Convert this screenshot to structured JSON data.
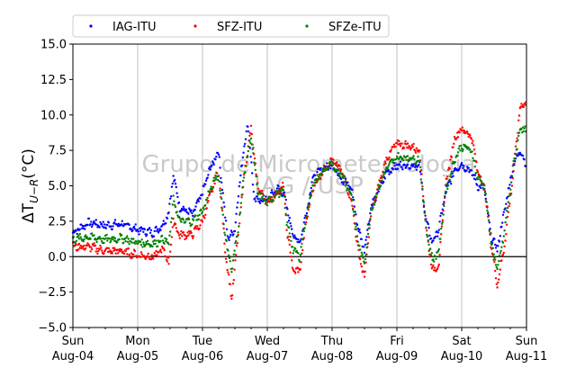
{
  "chart_data": {
    "type": "scatter",
    "ylabel": "ΔT U−R (°C)",
    "ylabel_main": "ΔT",
    "ylabel_sub": "U−R",
    "ylabel_unit": "(°C)",
    "ylim": [
      -5.0,
      15.0
    ],
    "yticks": [
      -5.0,
      -2.5,
      0.0,
      2.5,
      5.0,
      7.5,
      10.0,
      12.5,
      15.0
    ],
    "ytick_labels": [
      "−5.0",
      "−2.5",
      "0.0",
      "2.5",
      "5.0",
      "7.5",
      "10.0",
      "12.5",
      "15.0"
    ],
    "xlim_days": [
      0,
      7
    ],
    "xticks": [
      {
        "day": "Sun",
        "date": "Aug-04"
      },
      {
        "day": "Mon",
        "date": "Aug-05"
      },
      {
        "day": "Tue",
        "date": "Aug-06"
      },
      {
        "day": "Wed",
        "date": "Aug-07"
      },
      {
        "day": "Thu",
        "date": "Aug-08"
      },
      {
        "day": "Fri",
        "date": "Aug-09"
      },
      {
        "day": "Sat",
        "date": "Aug-10"
      },
      {
        "day": "Sun",
        "date": "Aug-11"
      }
    ],
    "grid": "vertical",
    "reference_line_y": 0,
    "legend_position": "top",
    "watermark_line1": "Grupo de Micrometeorologia",
    "watermark_line2": "IAG / USP",
    "series": [
      {
        "name": "IAG-ITU",
        "color": "#0000ff",
        "points": [
          [
            0.0,
            1.7
          ],
          [
            0.25,
            2.4
          ],
          [
            0.5,
            2.2
          ],
          [
            0.75,
            2.3
          ],
          [
            1.0,
            1.9
          ],
          [
            1.25,
            1.7
          ],
          [
            1.4,
            2.3
          ],
          [
            1.48,
            3.2
          ],
          [
            1.55,
            5.7
          ],
          [
            1.65,
            3.5
          ],
          [
            1.85,
            3.0
          ],
          [
            2.0,
            4.5
          ],
          [
            2.1,
            6.0
          ],
          [
            2.2,
            7.0
          ],
          [
            2.25,
            7.4
          ],
          [
            2.35,
            2.8
          ],
          [
            2.4,
            1.2
          ],
          [
            2.5,
            2.0
          ],
          [
            2.6,
            6.3
          ],
          [
            2.7,
            9.5
          ],
          [
            2.8,
            4.0
          ],
          [
            3.0,
            4.0
          ],
          [
            3.15,
            4.8
          ],
          [
            3.25,
            4.5
          ],
          [
            3.3,
            3.5
          ],
          [
            3.4,
            1.5
          ],
          [
            3.5,
            1.0
          ],
          [
            3.6,
            3.0
          ],
          [
            3.7,
            5.5
          ],
          [
            3.85,
            6.2
          ],
          [
            4.0,
            6.5
          ],
          [
            4.15,
            5.5
          ],
          [
            4.3,
            4.8
          ],
          [
            4.4,
            2.0
          ],
          [
            4.5,
            0.5
          ],
          [
            4.6,
            3.5
          ],
          [
            4.75,
            5.0
          ],
          [
            4.85,
            6.0
          ],
          [
            5.0,
            6.4
          ],
          [
            5.2,
            6.5
          ],
          [
            5.35,
            6.4
          ],
          [
            5.45,
            2.5
          ],
          [
            5.55,
            1.0
          ],
          [
            5.65,
            2.0
          ],
          [
            5.75,
            4.5
          ],
          [
            5.9,
            6.2
          ],
          [
            6.0,
            6.5
          ],
          [
            6.15,
            6.0
          ],
          [
            6.25,
            5.0
          ],
          [
            6.35,
            4.8
          ],
          [
            6.45,
            1.5
          ],
          [
            6.55,
            0.5
          ],
          [
            6.65,
            3.0
          ],
          [
            6.8,
            6.5
          ],
          [
            6.9,
            7.5
          ],
          [
            7.0,
            6.5
          ]
        ]
      },
      {
        "name": "SFZ-ITU",
        "color": "#ff0000",
        "points": [
          [
            0.0,
            0.7
          ],
          [
            0.25,
            0.7
          ],
          [
            0.5,
            0.4
          ],
          [
            0.75,
            0.4
          ],
          [
            1.0,
            0.1
          ],
          [
            1.25,
            0.0
          ],
          [
            1.4,
            0.5
          ],
          [
            1.48,
            -0.5
          ],
          [
            1.55,
            2.5
          ],
          [
            1.65,
            1.5
          ],
          [
            1.85,
            1.6
          ],
          [
            2.0,
            2.5
          ],
          [
            2.1,
            4.0
          ],
          [
            2.2,
            5.5
          ],
          [
            2.25,
            6.0
          ],
          [
            2.35,
            0.5
          ],
          [
            2.45,
            -3.0
          ],
          [
            2.55,
            1.5
          ],
          [
            2.65,
            6.0
          ],
          [
            2.75,
            9.0
          ],
          [
            2.85,
            5.0
          ],
          [
            3.0,
            3.8
          ],
          [
            3.15,
            4.5
          ],
          [
            3.25,
            5.0
          ],
          [
            3.3,
            2.0
          ],
          [
            3.4,
            -1.0
          ],
          [
            3.5,
            -1.0
          ],
          [
            3.6,
            2.5
          ],
          [
            3.7,
            4.8
          ],
          [
            3.85,
            6.0
          ],
          [
            4.0,
            6.8
          ],
          [
            4.15,
            6.0
          ],
          [
            4.3,
            4.0
          ],
          [
            4.4,
            0.5
          ],
          [
            4.5,
            -1.5
          ],
          [
            4.6,
            3.0
          ],
          [
            4.75,
            5.5
          ],
          [
            4.85,
            7.0
          ],
          [
            5.0,
            8.0
          ],
          [
            5.2,
            7.8
          ],
          [
            5.35,
            7.5
          ],
          [
            5.45,
            2.0
          ],
          [
            5.55,
            -1.0
          ],
          [
            5.65,
            -0.5
          ],
          [
            5.75,
            5.0
          ],
          [
            5.9,
            8.5
          ],
          [
            6.0,
            9.0
          ],
          [
            6.15,
            8.5
          ],
          [
            6.25,
            6.0
          ],
          [
            6.35,
            5.0
          ],
          [
            6.45,
            1.0
          ],
          [
            6.55,
            -2.0
          ],
          [
            6.65,
            0.5
          ],
          [
            6.8,
            6.0
          ],
          [
            6.9,
            10.5
          ],
          [
            7.0,
            11.0
          ]
        ]
      },
      {
        "name": "SFZe-ITU",
        "color": "#008000",
        "points": [
          [
            0.0,
            1.2
          ],
          [
            0.25,
            1.4
          ],
          [
            0.5,
            1.2
          ],
          [
            0.75,
            1.3
          ],
          [
            1.0,
            1.0
          ],
          [
            1.25,
            0.9
          ],
          [
            1.4,
            1.3
          ],
          [
            1.48,
            0.8
          ],
          [
            1.55,
            4.0
          ],
          [
            1.65,
            2.5
          ],
          [
            1.85,
            2.5
          ],
          [
            2.0,
            3.2
          ],
          [
            2.1,
            4.5
          ],
          [
            2.2,
            5.5
          ],
          [
            2.25,
            5.8
          ],
          [
            2.35,
            1.5
          ],
          [
            2.45,
            -1.0
          ],
          [
            2.55,
            2.0
          ],
          [
            2.65,
            6.0
          ],
          [
            2.75,
            8.5
          ],
          [
            2.85,
            4.5
          ],
          [
            3.0,
            3.8
          ],
          [
            3.15,
            4.5
          ],
          [
            3.25,
            4.5
          ],
          [
            3.3,
            2.5
          ],
          [
            3.4,
            0.5
          ],
          [
            3.5,
            0.0
          ],
          [
            3.6,
            2.8
          ],
          [
            3.7,
            5.0
          ],
          [
            3.85,
            6.0
          ],
          [
            4.0,
            6.5
          ],
          [
            4.15,
            5.8
          ],
          [
            4.3,
            4.3
          ],
          [
            4.4,
            1.0
          ],
          [
            4.5,
            -0.5
          ],
          [
            4.6,
            3.2
          ],
          [
            4.75,
            5.2
          ],
          [
            4.85,
            6.3
          ],
          [
            5.0,
            7.0
          ],
          [
            5.2,
            7.0
          ],
          [
            5.35,
            6.8
          ],
          [
            5.45,
            2.0
          ],
          [
            5.55,
            -0.3
          ],
          [
            5.65,
            0.5
          ],
          [
            5.75,
            4.5
          ],
          [
            5.9,
            7.0
          ],
          [
            6.0,
            7.8
          ],
          [
            6.15,
            7.5
          ],
          [
            6.25,
            5.5
          ],
          [
            6.35,
            5.0
          ],
          [
            6.45,
            1.2
          ],
          [
            6.55,
            -1.0
          ],
          [
            6.65,
            1.5
          ],
          [
            6.8,
            6.5
          ],
          [
            6.9,
            9.0
          ],
          [
            7.0,
            9.0
          ]
        ]
      }
    ]
  }
}
